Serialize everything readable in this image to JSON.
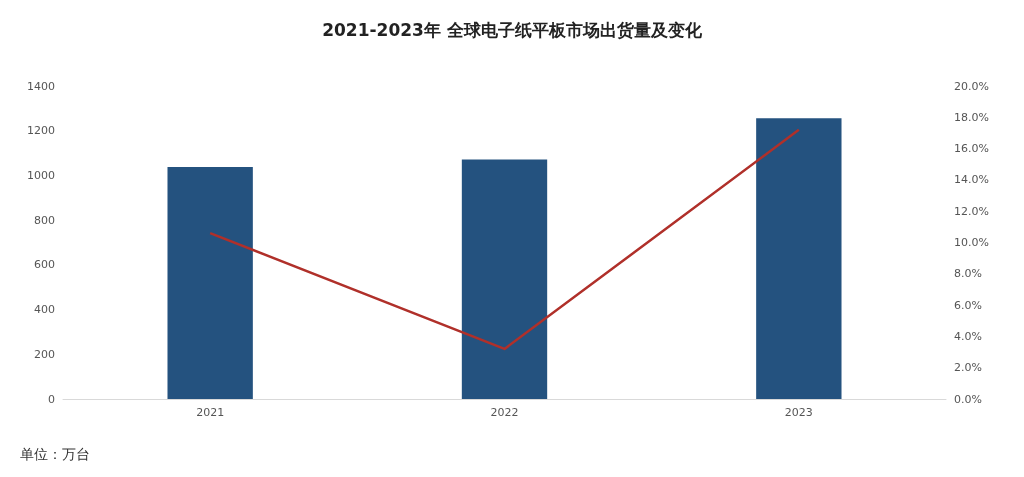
{
  "chart_data": {
    "type": "bar",
    "title": "2021-2023年 全球电子纸平板市场出货量及变化",
    "categories": [
      "2021",
      "2022",
      "2023"
    ],
    "series": [
      {
        "color": "#24527f",
        "values": [
          1038,
          1071,
          1256
        ]
      },
      {
        "type": "line",
        "axis": "y2",
        "color": "#b0302a",
        "values": [
          10.6,
          3.2,
          17.2
        ]
      }
    ],
    "ylim": [
      0,
      1400
    ],
    "yticks": [
      0,
      200,
      400,
      600,
      800,
      1000,
      1200,
      1400
    ],
    "y2lim": [
      0,
      20
    ],
    "y2ticks": [
      {
        "value": 0,
        "label": "0.0%"
      },
      {
        "value": 2,
        "label": "2.0%"
      },
      {
        "value": 4,
        "label": "4.0%"
      },
      {
        "value": 6,
        "label": "6.0%"
      },
      {
        "value": 8,
        "label": "8.0%"
      },
      {
        "value": 10,
        "label": "10.0%"
      },
      {
        "value": 12,
        "label": "12.0%"
      },
      {
        "value": 14,
        "label": "14.0%"
      },
      {
        "value": 16,
        "label": "16.0%"
      },
      {
        "value": 18,
        "label": "18.0%"
      },
      {
        "value": 20,
        "label": "20.0%"
      }
    ],
    "grid": false,
    "marker": "none",
    "annotations": [
      "单位：万台"
    ]
  }
}
